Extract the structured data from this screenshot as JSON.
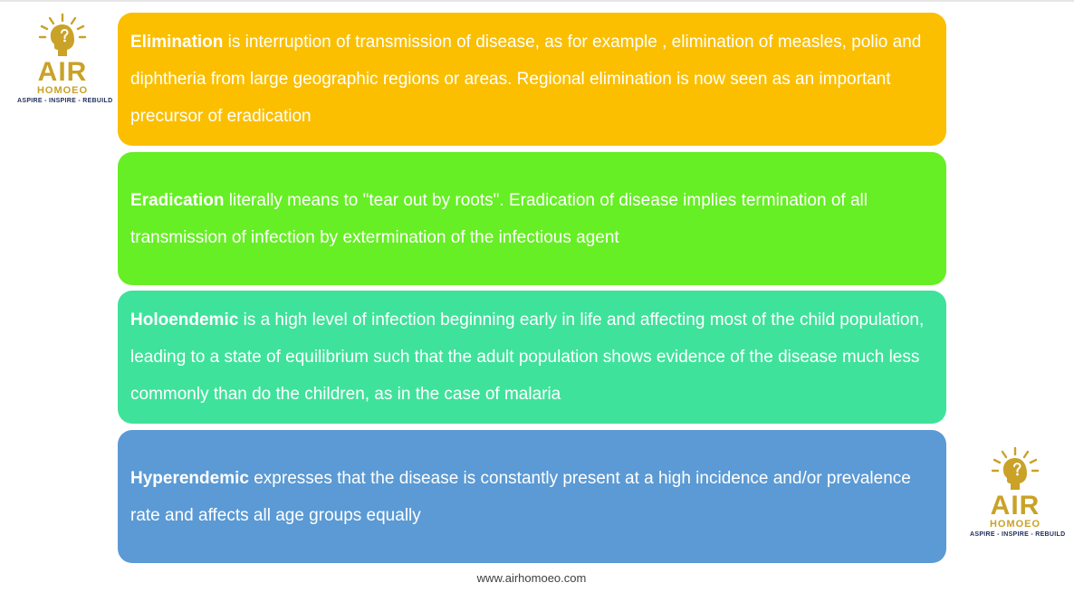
{
  "logo": {
    "name": "AIR",
    "subname": "HOMOEO",
    "tagline": "ASPIRE - INSPIRE - REBUILD",
    "color": "#c9a227"
  },
  "cards": [
    {
      "term": "Elimination",
      "text": " is interruption of transmission of disease, as for example , elimination of measles, polio and diphtheria from large geographic regions or areas. Regional elimination is now seen as an important precursor of eradication",
      "color": "#fbbf00"
    },
    {
      "term": "Eradication",
      "text": " literally means to \"tear out by roots\". Eradication of disease implies termination of all transmission of infection by extermination of the infectious agent",
      "color": "#66ef24"
    },
    {
      "term": "Holoendemic",
      "text": " is a high level of infection beginning early in life and affecting most of the child population, leading to a state of equilibrium such that the adult population shows evidence of the disease much less commonly than do the children, as in the case of malaria",
      "color": "#3fe29b"
    },
    {
      "term": "Hyperendemic",
      "text": " expresses that the disease is constantly present at a high incidence and/or prevalence rate and affects all age groups equally",
      "color": "#5b9ad4"
    }
  ],
  "footer": {
    "url": "www.airhomoeo.com"
  }
}
